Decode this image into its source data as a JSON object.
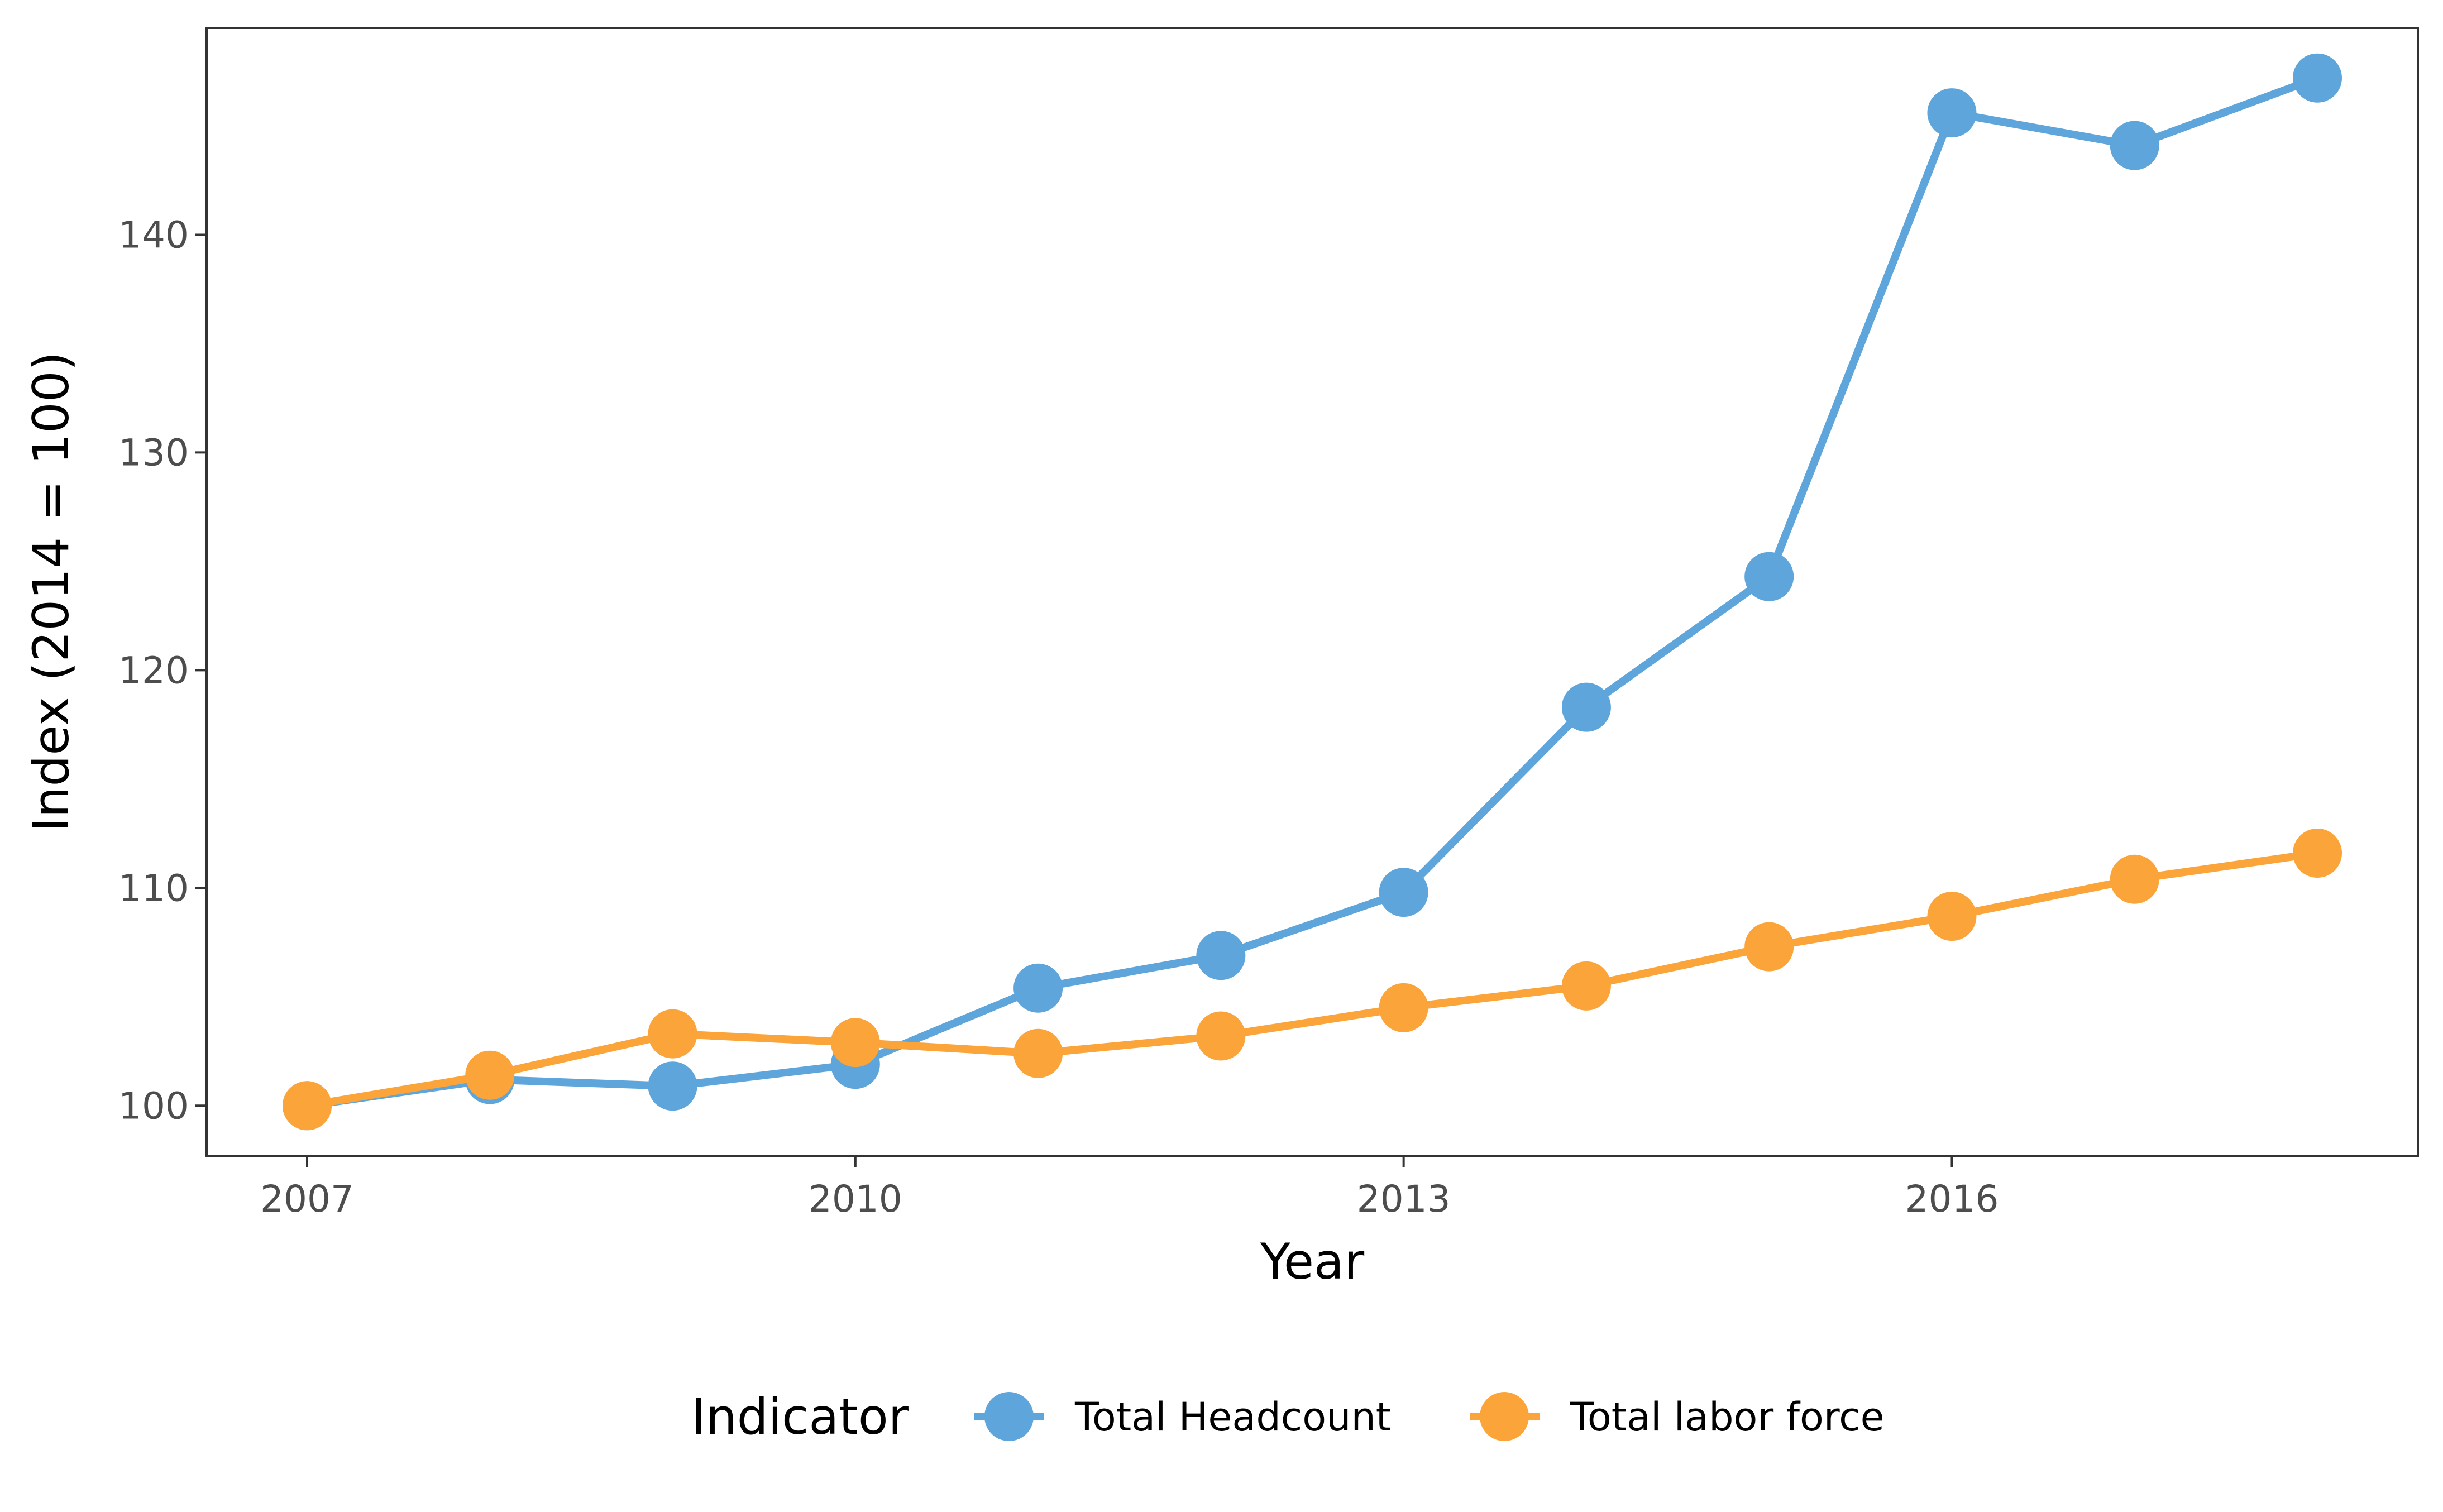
{
  "chart_data": {
    "type": "line",
    "title": "",
    "xlabel": "Year",
    "ylabel": "Index (2014 = 100)",
    "x": [
      2007,
      2008,
      2009,
      2010,
      2011,
      2012,
      2013,
      2014,
      2015,
      2016,
      2017,
      2018
    ],
    "xlim": [
      2006.45,
      2018.55
    ],
    "ylim": [
      97.7,
      149.5
    ],
    "x_ticks": [
      2007,
      2010,
      2013,
      2016
    ],
    "y_ticks": [
      100,
      110,
      120,
      130,
      140
    ],
    "grid": false,
    "legend_position": "bottom",
    "legend_title": "Indicator",
    "series": [
      {
        "name": "Total Headcount",
        "color": "#5DA5DA",
        "values": [
          100.0,
          101.2,
          100.9,
          101.9,
          105.4,
          106.9,
          109.8,
          118.3,
          124.3,
          145.6,
          144.1,
          147.2
        ]
      },
      {
        "name": "Total labor force",
        "color": "#FAA43A",
        "values": [
          100.0,
          101.4,
          103.3,
          102.9,
          102.4,
          103.2,
          104.5,
          105.5,
          107.3,
          108.7,
          110.4,
          111.6
        ]
      }
    ]
  }
}
